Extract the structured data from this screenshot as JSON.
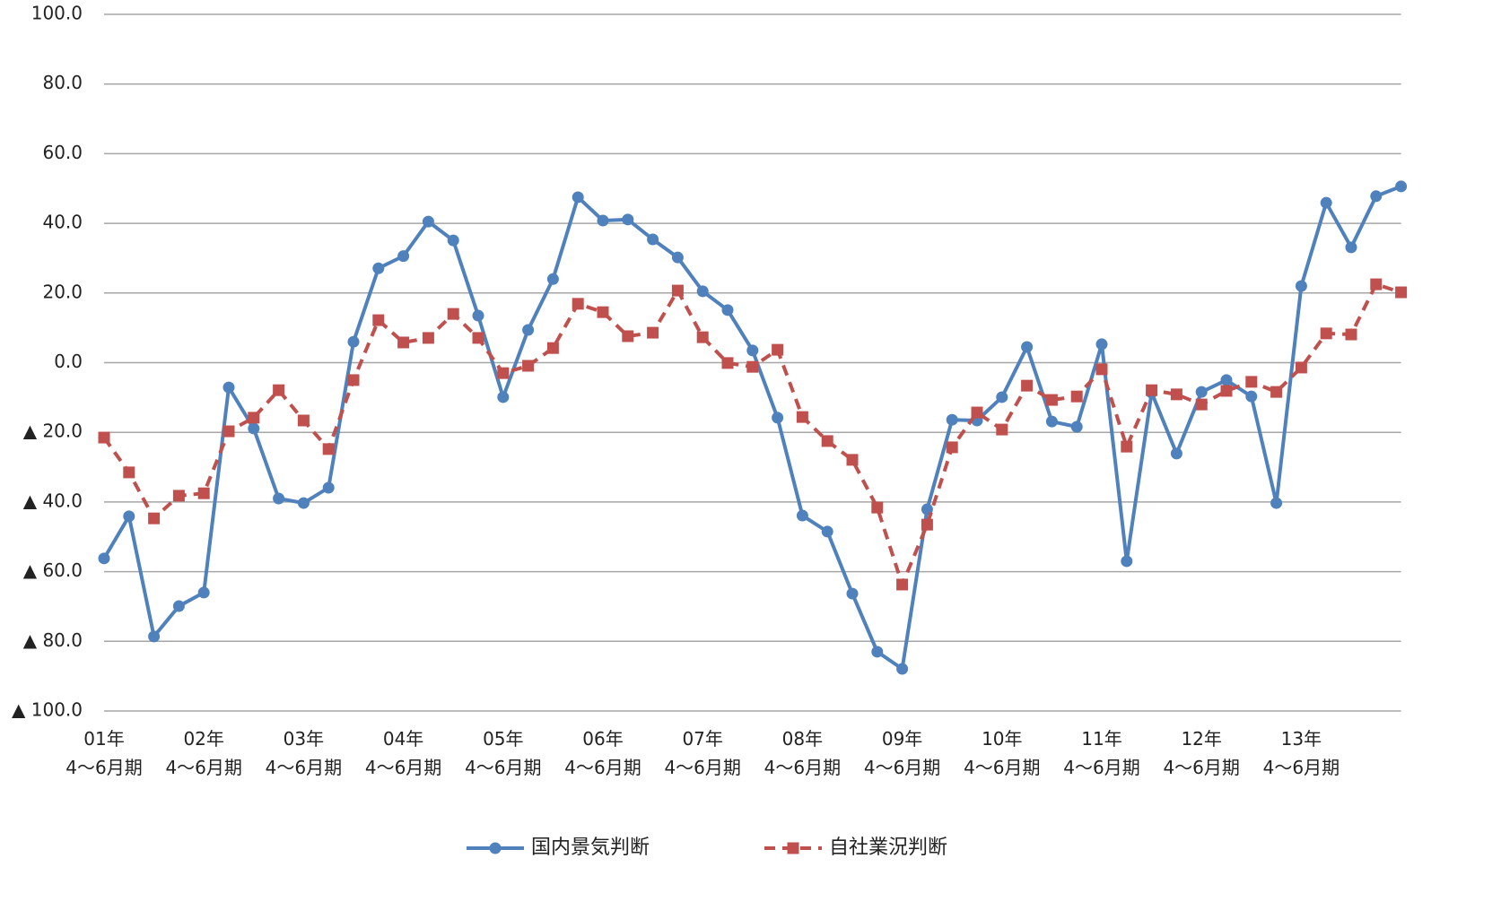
{
  "chart_data": {
    "type": "line",
    "categories": [
      "01年\n4～6月期",
      null,
      null,
      null,
      "02年\n4～6月期",
      null,
      null,
      null,
      "03年\n4～6月期",
      null,
      null,
      null,
      "04年\n4～6月期",
      null,
      null,
      null,
      "05年\n4～6月期",
      null,
      null,
      null,
      "06年\n4～6月期",
      null,
      null,
      null,
      "07年\n4～6月期",
      null,
      null,
      null,
      "08年\n4～6月期",
      null,
      null,
      null,
      "09年\n4～6月期",
      null,
      null,
      null,
      "10年\n4～6月期",
      null,
      null,
      null,
      "11年\n4～6月期",
      null,
      null,
      null,
      "12年\n4～6月期",
      null,
      null,
      null,
      "13年\n4～6月期",
      null,
      null,
      null,
      null
    ],
    "series": [
      {
        "name": "国内景気判断",
        "color": "#4f81bd",
        "marker": "circle",
        "dash": false,
        "values": [
          -56.2,
          -44.1,
          -78.6,
          -69.9,
          -66.0,
          -7.1,
          -18.9,
          -39.0,
          -40.3,
          -35.9,
          6.0,
          27.1,
          30.6,
          40.5,
          35.1,
          13.5,
          -9.9,
          9.4,
          24.0,
          47.5,
          40.8,
          41.1,
          35.4,
          30.2,
          20.5,
          15.1,
          3.5,
          -15.8,
          -43.9,
          -48.5,
          -66.3,
          -83.0,
          -87.9,
          -42.1,
          -16.4,
          -16.6,
          -9.9,
          4.5,
          -16.9,
          -18.4,
          5.3,
          -57.0,
          -8.6,
          -26.1,
          -8.4,
          -5.0,
          -9.7,
          -40.3,
          22.0,
          45.9,
          33.1,
          47.8,
          50.6
        ]
      },
      {
        "name": "自社業況判断",
        "color": "#c0504d",
        "marker": "square",
        "dash": true,
        "values": [
          -21.5,
          -31.5,
          -44.7,
          -38.2,
          -37.5,
          -19.7,
          -15.8,
          -7.9,
          -16.6,
          -24.8,
          -5.0,
          12.2,
          5.8,
          7.1,
          14.0,
          7.1,
          -3.0,
          -0.9,
          4.2,
          16.9,
          14.5,
          7.6,
          8.6,
          20.7,
          7.3,
          -0.1,
          -1.2,
          3.7,
          -15.6,
          -22.5,
          -27.9,
          -41.6,
          -63.7,
          -46.5,
          -24.3,
          -14.3,
          -19.2,
          -6.6,
          -10.7,
          -9.7,
          -1.9,
          -24.1,
          -7.9,
          -9.1,
          -12.0,
          -8.1,
          -5.5,
          -8.4,
          -1.4,
          8.4,
          8.1,
          22.5,
          20.2
        ]
      }
    ],
    "ylim": [
      -100,
      100
    ],
    "yticks": [
      {
        "value": -100,
        "label": "▲ 100.0"
      },
      {
        "value": -80,
        "label": "▲ 80.0"
      },
      {
        "value": -60,
        "label": "▲ 60.0"
      },
      {
        "value": -40,
        "label": "▲ 40.0"
      },
      {
        "value": -20,
        "label": "▲ 20.0"
      },
      {
        "value": 0,
        "label": "0.0"
      },
      {
        "value": 20,
        "label": "20.0"
      },
      {
        "value": 40,
        "label": "40.0"
      },
      {
        "value": 60,
        "label": "60.0"
      },
      {
        "value": 80,
        "label": "80.0"
      },
      {
        "value": 100,
        "label": "100.0"
      }
    ],
    "grid": true,
    "legend": "bottom"
  }
}
